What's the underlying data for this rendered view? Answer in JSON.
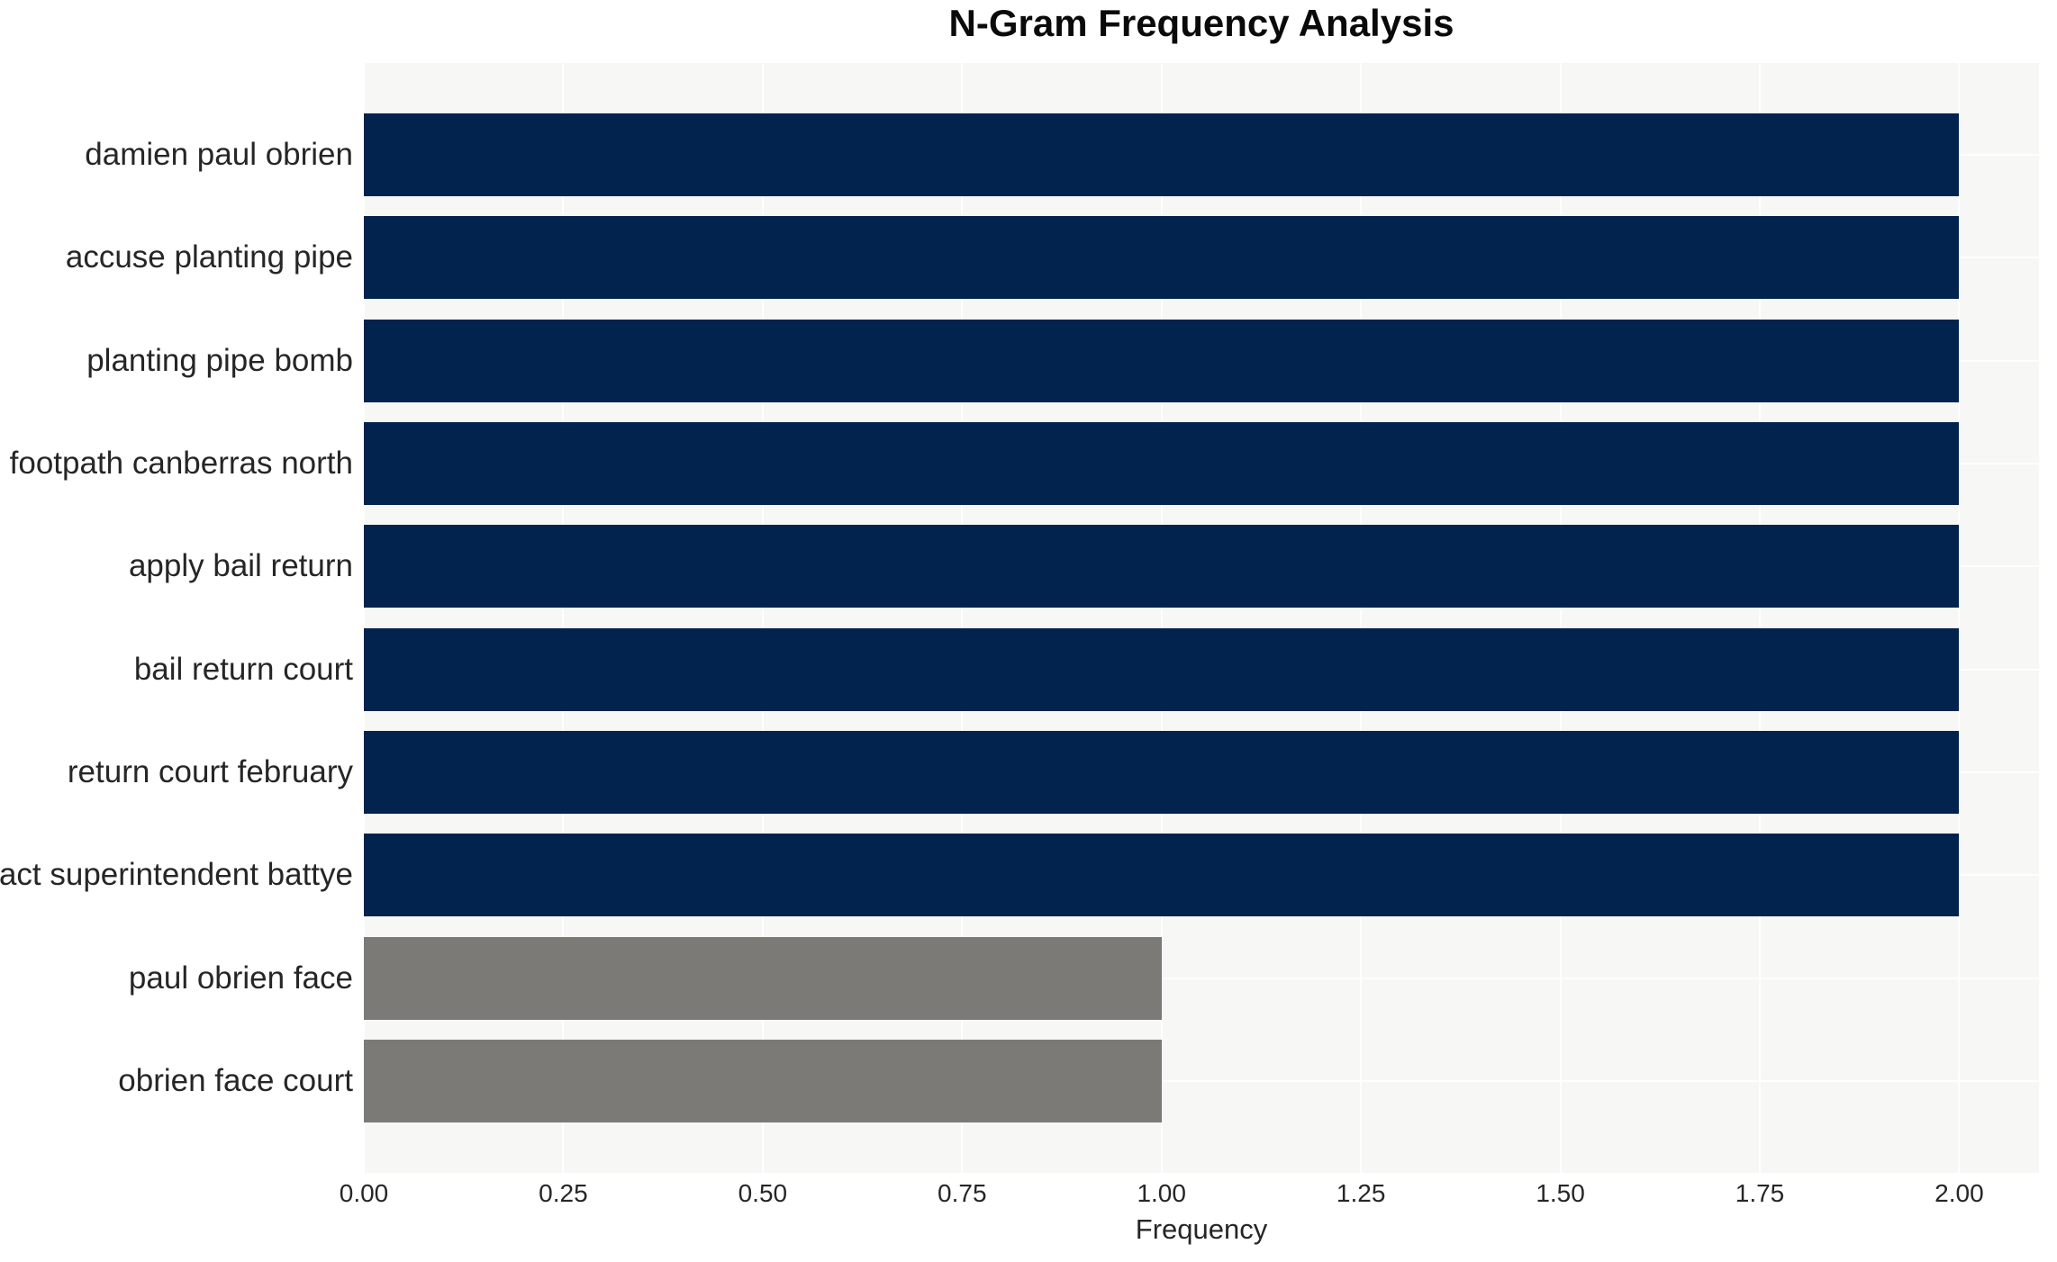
{
  "chart_data": {
    "type": "bar",
    "orientation": "horizontal",
    "title": "N-Gram Frequency Analysis",
    "xlabel": "Frequency",
    "ylabel": "",
    "categories": [
      "damien paul obrien",
      "accuse planting pipe",
      "planting pipe bomb",
      "footpath canberras north",
      "apply bail return",
      "bail return court",
      "return court february",
      "act superintendent battye",
      "paul obrien face",
      "obrien face court"
    ],
    "values": [
      2,
      2,
      2,
      2,
      2,
      2,
      2,
      2,
      1,
      1
    ],
    "bar_colors": [
      "#02234d",
      "#02234d",
      "#02234d",
      "#02234d",
      "#02234d",
      "#02234d",
      "#02234d",
      "#02234d",
      "#7b7a77",
      "#7b7a77"
    ],
    "xlim": [
      0,
      2.1
    ],
    "x_tick_values": [
      0.0,
      0.25,
      0.5,
      0.75,
      1.0,
      1.25,
      1.5,
      1.75,
      2.0
    ],
    "x_tick_labels": [
      "0.00",
      "0.25",
      "0.50",
      "0.75",
      "1.00",
      "1.25",
      "1.50",
      "1.75",
      "2.00"
    ],
    "grid": true,
    "legend": false
  },
  "style": {
    "plot_background": "#f7f7f5",
    "gridline_color": "#ffffff",
    "title_color": "#0a0a0a",
    "label_color": "#262626",
    "tick_color": "#262626"
  }
}
